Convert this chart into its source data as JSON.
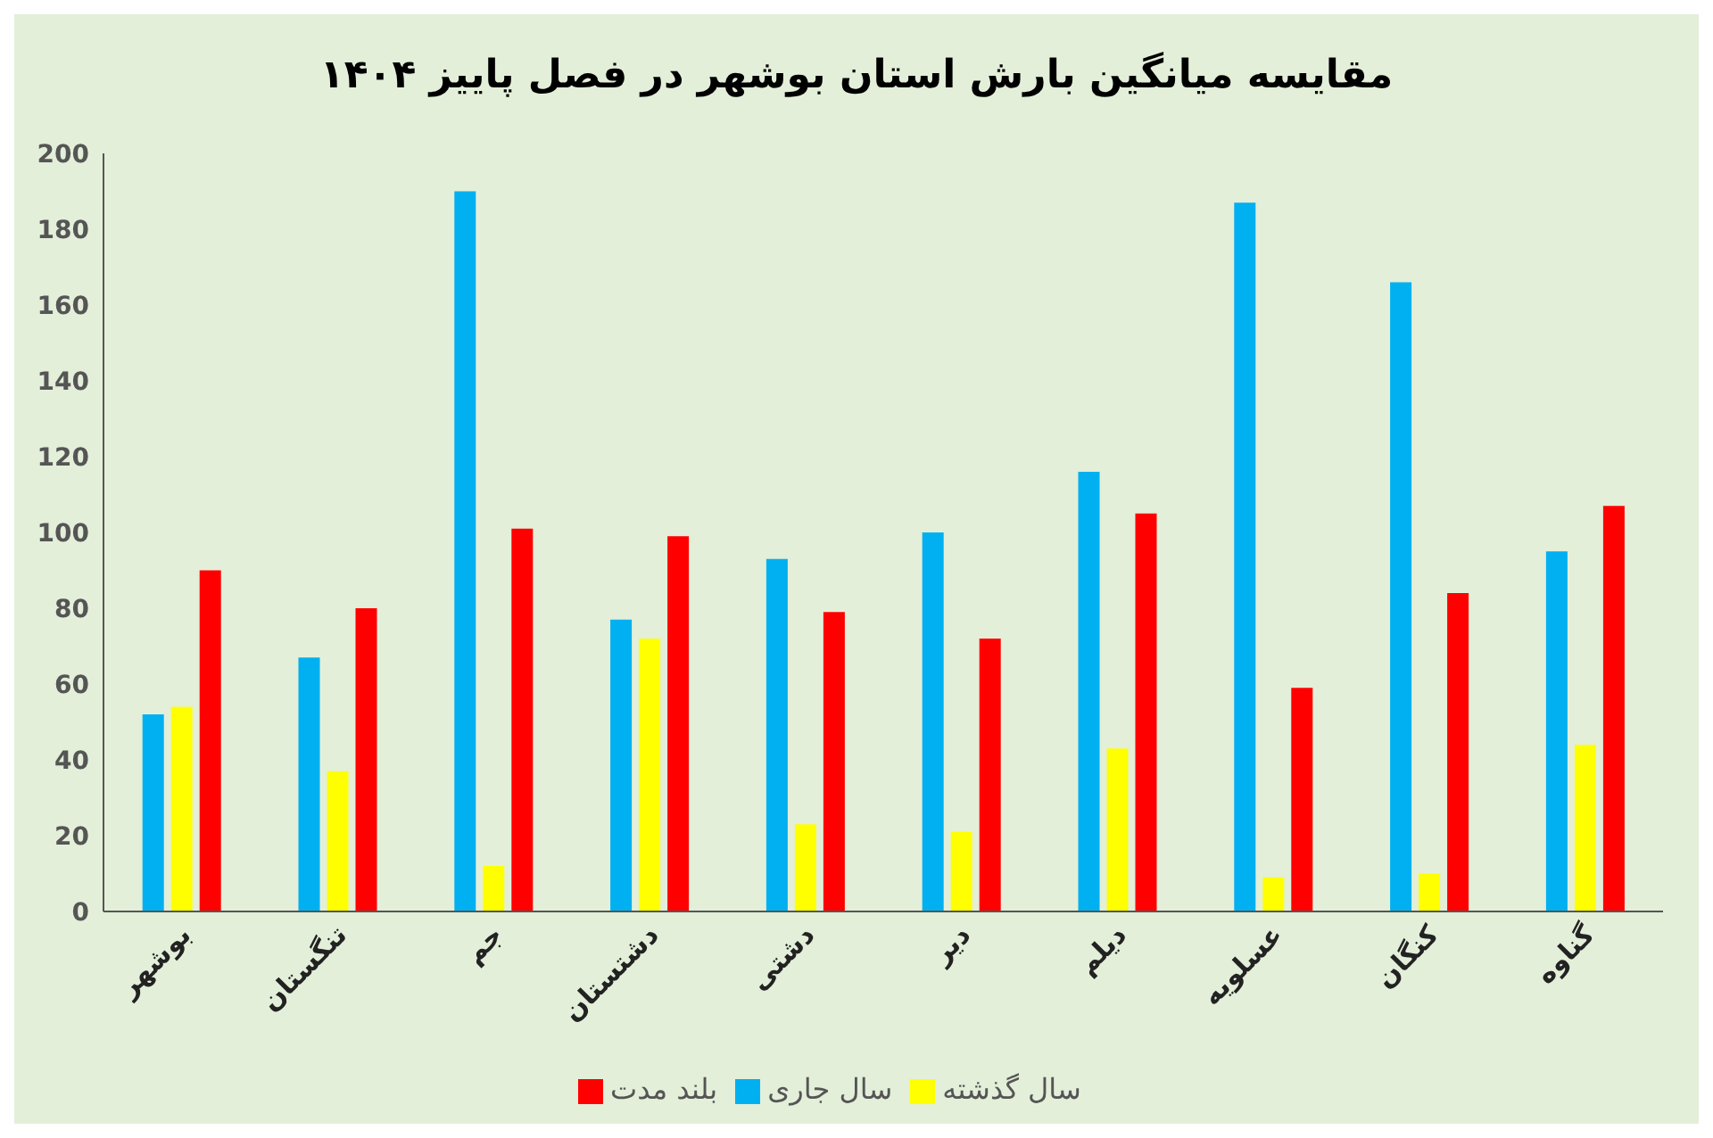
{
  "chart_data": {
    "type": "bar",
    "title": "مقایسه میانگین بارش استان بوشهر در فصل پاییز ۱۴۰۴",
    "categories": [
      "بوشهر",
      "تنگستان",
      "جم",
      "دشتستان",
      "دشتی",
      "دیر",
      "دیلم",
      "عسلویه",
      "کنگان",
      "گناوه"
    ],
    "series": [
      {
        "name": "سال جاری",
        "color": "#00b0f0",
        "values": [
          52,
          67,
          190,
          77,
          93,
          100,
          116,
          187,
          166,
          95
        ]
      },
      {
        "name": "سال گذشته",
        "color": "#ffff00",
        "values": [
          54,
          37,
          12,
          72,
          23,
          21,
          43,
          9,
          10,
          44
        ]
      },
      {
        "name": "بلند مدت",
        "color": "#ff0000",
        "values": [
          90,
          80,
          101,
          99,
          79,
          72,
          105,
          59,
          84,
          107
        ]
      }
    ],
    "ylim": [
      0,
      200
    ],
    "yticks": [
      0,
      20,
      40,
      60,
      80,
      100,
      120,
      140,
      160,
      180,
      200
    ],
    "grid": false,
    "legend": "bottom"
  }
}
